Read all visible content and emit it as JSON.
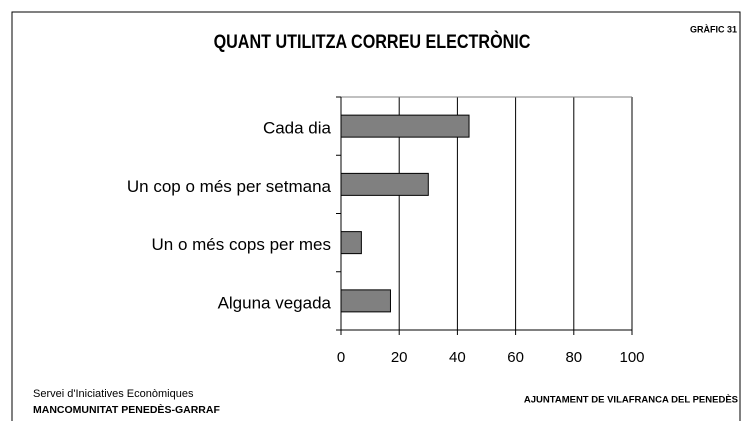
{
  "chart_data": {
    "type": "barh",
    "title": "QUANT UTILITZA CORREU ELECTRÒNIC",
    "chart_number": "GRÀFIC 31",
    "categories": [
      "Cada dia",
      "Un cop o més per setmana",
      "Un o més cops per mes",
      "Alguna vegada"
    ],
    "values": [
      44,
      30,
      7,
      17
    ],
    "color": "#808080",
    "xlim": [
      0,
      100
    ],
    "xticks": [
      0,
      20,
      40,
      60,
      80,
      100
    ],
    "grid": true,
    "source": "Servei d'Iniciatives Econòmiques",
    "organization": "MANCOMUNITAT PENEDÈS-GARRAF",
    "publisher": "AJUNTAMENT DE VILAFRANCA DEL PENEDÈS"
  }
}
